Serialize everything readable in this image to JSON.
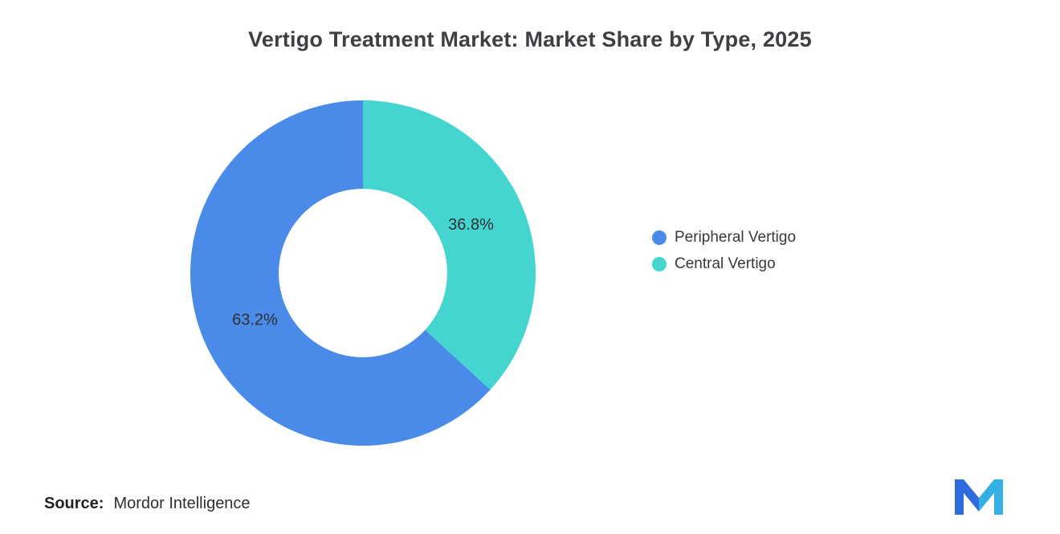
{
  "title": "Vertigo Treatment Market: Market Share by Type, 2025",
  "source": {
    "label": "Source:",
    "value": "Mordor Intelligence"
  },
  "logo": {
    "name": "mordor-intelligence-logo",
    "color_primary": "#2e6bdf",
    "color_secondary": "#35b0e5"
  },
  "chart_data": {
    "type": "pie",
    "subtype": "donut",
    "title": "Vertigo Treatment Market: Market Share by Type, 2025",
    "legend_position": "right",
    "start_angle_deg": -90,
    "direction": "counterclockwise",
    "inner_radius_ratio": 0.488,
    "segments": [
      {
        "label": "Peripheral Vertigo",
        "value": 63.2,
        "data_label": "63.2%",
        "color": "#4a8ae8"
      },
      {
        "label": "Central Vertigo",
        "value": 36.8,
        "data_label": "36.8%",
        "color": "#45d5d0"
      }
    ]
  }
}
